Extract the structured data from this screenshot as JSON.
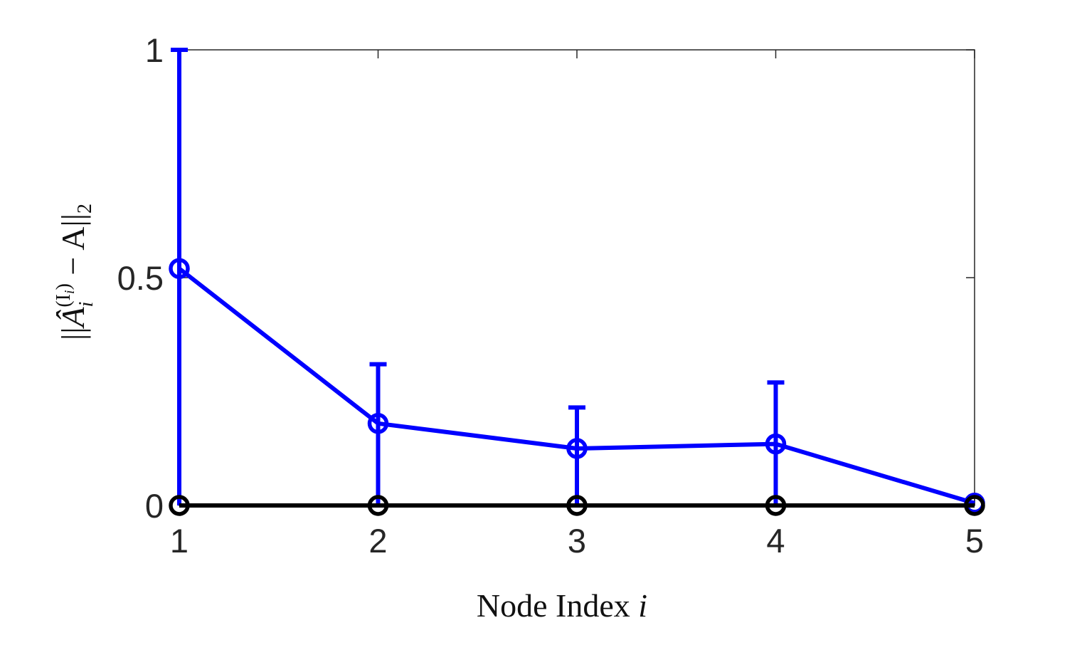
{
  "chart_data": {
    "type": "line",
    "title": "",
    "xlabel": {
      "prefix": "Node Index ",
      "var": "i"
    },
    "ylabel": {
      "open": "||",
      "symbol": "Â",
      "sub": "i",
      "sup": "(I",
      "sup_sub": "i",
      "sup_close": ")",
      "rest": " − A||",
      "norm_sub": "2"
    },
    "x": [
      1,
      2,
      3,
      4,
      5
    ],
    "xticks": [
      "1",
      "2",
      "3",
      "4",
      "5"
    ],
    "yticks": [
      "0",
      "0.5",
      "1"
    ],
    "ytick_values": [
      0,
      0.5,
      1
    ],
    "xlim": [
      1,
      5
    ],
    "ylim": [
      0,
      1
    ],
    "grid": false,
    "legend": "none",
    "series": [
      {
        "color": "#0000ff",
        "marker": "circle",
        "values": [
          0.52,
          0.18,
          0.125,
          0.135,
          0.005
        ],
        "error_upper": [
          1.0,
          0.31,
          0.215,
          0.27,
          0.0
        ],
        "error_lower": [
          0.0,
          0.0,
          0.0,
          0.0,
          0.0
        ]
      },
      {
        "color": "#000000",
        "marker": "circle",
        "values": [
          0,
          0,
          0,
          0,
          0
        ]
      }
    ]
  }
}
